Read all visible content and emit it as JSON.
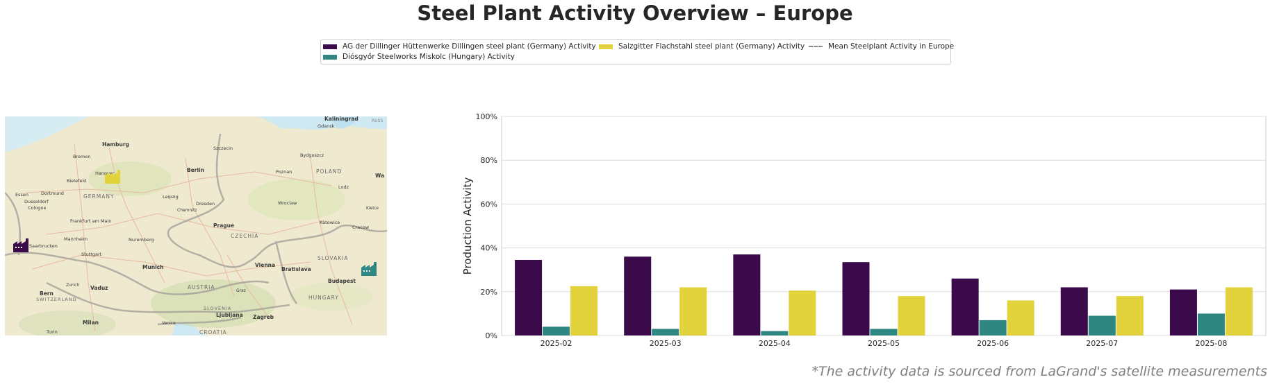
{
  "title": "Steel Plant Activity Overview – Europe",
  "legend": {
    "items": [
      {
        "label": "AG der Dillinger Hüttenwerke Dillingen steel plant (Germany) Activity",
        "color": "#3b0a4a"
      },
      {
        "label": "Diósgyőr Steelworks Miskolc (Hungary) Activity",
        "color": "#2e8780"
      },
      {
        "label": "Salzgitter Flachstahl steel plant (Germany) Activity",
        "color": "#e2d23c"
      }
    ],
    "mean_label": "Mean Steelplant Activity in Europe"
  },
  "map": {
    "labels": [
      "Kaliningrad",
      "Gdansk",
      "Hamburg",
      "Szczecin",
      "Bydgoszcz",
      "Bremen",
      "Hanover",
      "Berlin",
      "Poznan",
      "POLAND",
      "Bielefeld",
      "Wa",
      "Essen",
      "Dortmund",
      "GERMANY",
      "Leipzig",
      "Lodz",
      "Dusseldorf",
      "Dresden",
      "Wroclaw",
      "Cologne",
      "Chemnitz",
      "Kielce",
      "Frankfurt am Main",
      "Prague",
      "Katowice",
      "Cracow",
      "CZECHIA",
      "Mannheim",
      "Saarbrucken",
      "Nuremberg",
      "Stuttgart",
      "SLOVAKIA",
      "Munich",
      "Vienna",
      "Bratislava",
      "Zurich",
      "Vaduz",
      "AUSTRIA",
      "Graz",
      "Budapest",
      "Bern",
      "SWITZERLAND",
      "HUNGARY",
      "SLOVENIA",
      "Ljubljana",
      "Zagreb",
      "Milan",
      "Venice",
      "CROATIA",
      "Turin",
      "RUSS"
    ],
    "markers": [
      {
        "name": "salzgitter-marker",
        "color": "#e2d23c"
      },
      {
        "name": "dillingen-marker",
        "color": "#3b0a4a"
      },
      {
        "name": "miskolc-marker",
        "color": "#2e8780"
      }
    ]
  },
  "chart_data": {
    "type": "bar",
    "categories": [
      "2025-02",
      "2025-03",
      "2025-04",
      "2025-05",
      "2025-06",
      "2025-07",
      "2025-08"
    ],
    "series": [
      {
        "name": "AG der Dillinger Hüttenwerke Dillingen steel plant (Germany) Activity",
        "color": "#3b0a4a",
        "values": [
          34.5,
          36,
          37,
          33.5,
          26,
          22,
          21
        ]
      },
      {
        "name": "Diósgyőr Steelworks Miskolc (Hungary) Activity",
        "color": "#2e8780",
        "values": [
          4,
          3,
          2,
          3,
          7,
          9,
          10
        ]
      },
      {
        "name": "Salzgitter Flachstahl steel plant (Germany) Activity",
        "color": "#e2d23c",
        "values": [
          22.5,
          22,
          20.5,
          18,
          16,
          18,
          22
        ]
      }
    ],
    "ylabel": "Production Activity",
    "xlabel": "",
    "ylim": [
      0,
      100
    ],
    "yticks": [
      "0%",
      "20%",
      "40%",
      "60%",
      "80%",
      "100%"
    ],
    "grid": true
  },
  "footnote": "*The activity data is sourced from LaGrand's satellite measurements"
}
